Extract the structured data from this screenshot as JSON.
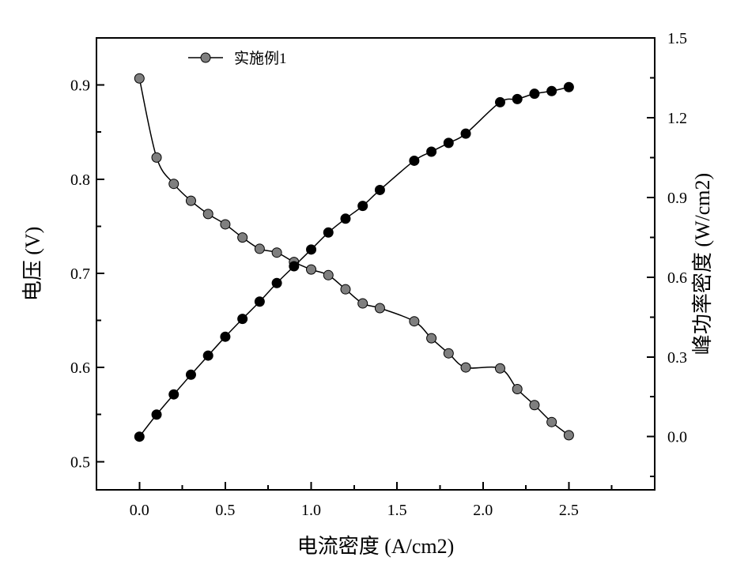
{
  "chart_data": {
    "type": "line",
    "title": "",
    "xlabel": "电流密度 (A/cm2)",
    "ylabel_left": "电压 (V)",
    "ylabel_right": "峰功率密度 (W/cm2)",
    "x_ticks": [
      "0.0",
      "0.5",
      "1.0",
      "1.5",
      "2.0",
      "2.5"
    ],
    "y_left_ticks": [
      "0.5",
      "0.6",
      "0.7",
      "0.8",
      "0.9"
    ],
    "y_right_ticks": [
      "0.0",
      "0.3",
      "0.6",
      "0.9",
      "1.2",
      "1.5"
    ],
    "xlim": [
      -0.25,
      3.0
    ],
    "ylim_left": [
      0.47,
      0.95
    ],
    "ylim_right": [
      -0.2,
      1.5
    ],
    "legend": {
      "label": "实施例1",
      "placement": "top-left"
    },
    "x": [
      0.0,
      0.1,
      0.2,
      0.3,
      0.4,
      0.5,
      0.6,
      0.7,
      0.8,
      0.9,
      1.0,
      1.1,
      1.2,
      1.3,
      1.4,
      1.6,
      1.7,
      1.8,
      1.9,
      2.1,
      2.2,
      2.3,
      2.4,
      2.5
    ],
    "series": [
      {
        "name": "实施例1",
        "axis": "left",
        "color": "#7f7f7f",
        "values": [
          0.907,
          0.823,
          0.795,
          0.777,
          0.763,
          0.752,
          0.738,
          0.726,
          0.722,
          0.712,
          0.704,
          0.698,
          0.683,
          0.668,
          0.663,
          0.649,
          0.631,
          0.615,
          0.6,
          0.599,
          0.577,
          0.56,
          0.542,
          0.528
        ]
      },
      {
        "axis": "right",
        "color": "#000000",
        "values": [
          0.0,
          0.083,
          0.159,
          0.233,
          0.305,
          0.376,
          0.443,
          0.508,
          0.578,
          0.641,
          0.704,
          0.768,
          0.82,
          0.868,
          0.928,
          1.038,
          1.072,
          1.105,
          1.14,
          1.258,
          1.27,
          1.29,
          1.3,
          1.315
        ]
      }
    ]
  }
}
